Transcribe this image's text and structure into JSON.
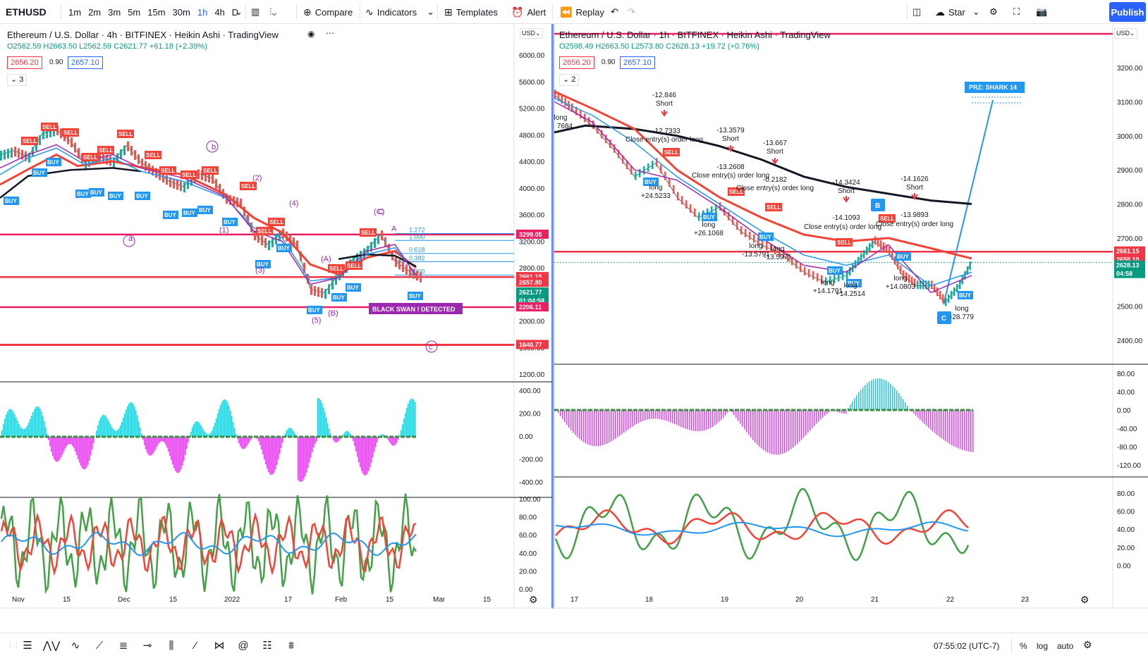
{
  "toolbar": {
    "symbol": "ETHUSD",
    "intervals": [
      "1m",
      "2m",
      "3m",
      "5m",
      "15m",
      "30m",
      "1h",
      "4h",
      "D"
    ],
    "active_interval": "1h",
    "compare": "Compare",
    "indicators": "Indicators",
    "templates": "Templates",
    "alert": "Alert",
    "replay": "Replay",
    "star": "Star",
    "publish": "Publish"
  },
  "colors": {
    "accent": "#2962ff",
    "green": "#089981",
    "red": "#f23645",
    "buy_label": "#2196f3",
    "sell_label": "#f44336",
    "pink_line": "#e91e63",
    "purple": "#9c27b0"
  },
  "left_chart": {
    "title": "Ethereum / U.S. Dollar · 4h · BITFINEX · Heikin Ashi · TradingView",
    "ohlc": {
      "o": "O2562.59",
      "h": "H2663.50",
      "l": "L2562.59",
      "c": "C2621.77",
      "chg": "+61.18 (+2.39%)"
    },
    "bid": "2656.20",
    "spread": "0.90",
    "ask": "2657.10",
    "indicator_count": "3",
    "currency": "USD",
    "price_axis": [
      "6000.00",
      "5600.00",
      "5200.00",
      "4800.00",
      "4400.00",
      "4000.00",
      "3600.00",
      "3200.00",
      "2800.00",
      "2400.00",
      "2000.00",
      "1600.00",
      "1200.00"
    ],
    "price_tags": [
      {
        "text": "3299.05",
        "color": "#e91e63"
      },
      {
        "text": "2661.15",
        "color": "#f23645"
      },
      {
        "text": "2657.80",
        "color": "#f23645"
      },
      {
        "text": "2621.77",
        "color": "#089981"
      },
      {
        "text": "01:04:58",
        "color": "#089981"
      },
      {
        "text": "2206.11",
        "color": "#e91e63"
      },
      {
        "text": "1640.77",
        "color": "#f23645"
      }
    ],
    "fib_labels": [
      "1.272",
      "1.000",
      "0.618",
      "0.382",
      "0.000"
    ],
    "osc_axis": [
      "400.00",
      "200.00",
      "0.00",
      "-200.00",
      "-400.00"
    ],
    "rsi_axis": [
      "100.00",
      "80.00",
      "60.00",
      "40.00",
      "20.00",
      "0.00"
    ],
    "time_axis": [
      "Nov",
      "15",
      "Dec",
      "15",
      "2022",
      "17",
      "Feb",
      "15",
      "Mar",
      "15"
    ],
    "wave_labels": [
      "a",
      "b",
      "(A)",
      "(B)",
      "C",
      "(C)",
      "(1)",
      "(2)",
      "(3)",
      "(4)",
      "(5)",
      "A"
    ],
    "banner": "BLACK SWAN ! DETECTED"
  },
  "right_chart": {
    "title": "Ethereum / U.S. Dollar · 1h · BITFINEX · Heikin Ashi · TradingView",
    "ohlc": {
      "o": "O2598.49",
      "h": "H2663.50",
      "l": "L2573.80",
      "c": "C2628.13",
      "chg": "+19.72 (+0.76%)"
    },
    "bid": "2656.20",
    "spread": "0.90",
    "ask": "2657.10",
    "indicator_count": "2",
    "currency": "USD",
    "price_axis": [
      "3200.00",
      "3100.00",
      "3000.00",
      "2900.00",
      "2800.00",
      "2700.00",
      "2600.00",
      "2500.00",
      "2400.00"
    ],
    "price_tags": [
      {
        "text": "2661.15",
        "color": "#f23645"
      },
      {
        "text": "2658.10",
        "color": "#f23645"
      },
      {
        "text": "2628.13",
        "color": "#089981"
      },
      {
        "text": "04:58",
        "color": "#089981"
      }
    ],
    "prz_label": "PRZ: SHARK 14",
    "osc_axis": [
      "80.00",
      "40.00",
      "0.00",
      "-40.00",
      "-80.00",
      "-120.00"
    ],
    "rsi_axis": [
      "80.00",
      "60.00",
      "40.00",
      "20.00",
      "0.00"
    ],
    "time_axis": [
      "17",
      "18",
      "19",
      "20",
      "21",
      "22",
      "23"
    ],
    "annotations": [
      {
        "t": "-12.846"
      },
      {
        "t": "Short"
      },
      {
        "t": "-12.7333"
      },
      {
        "t": "Close entry(s) order long"
      },
      {
        "t": "-13.3579"
      },
      {
        "t": "Short"
      },
      {
        "t": "-13.667"
      },
      {
        "t": "Short"
      },
      {
        "t": "-13.2608"
      },
      {
        "t": "Close entry(s) order long"
      },
      {
        "t": "-0.2182"
      },
      {
        "t": "Close entry(s) order long"
      },
      {
        "t": "-14.3424"
      },
      {
        "t": "Short"
      },
      {
        "t": "-14.1626"
      },
      {
        "t": "Short"
      },
      {
        "t": "-14.1093"
      },
      {
        "t": "-13.9893"
      },
      {
        "t": "Close entry(s) order long"
      },
      {
        "t": "Close entry(s) order long"
      },
      {
        "t": "long"
      },
      {
        "t": "+24.5233"
      },
      {
        "t": "long"
      },
      {
        "t": "+26.1068"
      },
      {
        "t": "long"
      },
      {
        "t": "-13.5791"
      },
      {
        "t": "long"
      },
      {
        "t": "-13.5971"
      },
      {
        "t": "long"
      },
      {
        "t": "+14.1791"
      },
      {
        "t": "long"
      },
      {
        "t": "+14.2514"
      },
      {
        "t": "long"
      },
      {
        "t": "+14.0803"
      },
      {
        "t": "long"
      },
      {
        "t": "-28.779"
      },
      {
        "t": "long"
      },
      {
        "t": "7684"
      }
    ],
    "pattern_labels": [
      "B",
      "C"
    ]
  },
  "status": {
    "time": "07:55:02 (UTC-7)",
    "percent": "%",
    "log": "log",
    "auto": "auto"
  }
}
